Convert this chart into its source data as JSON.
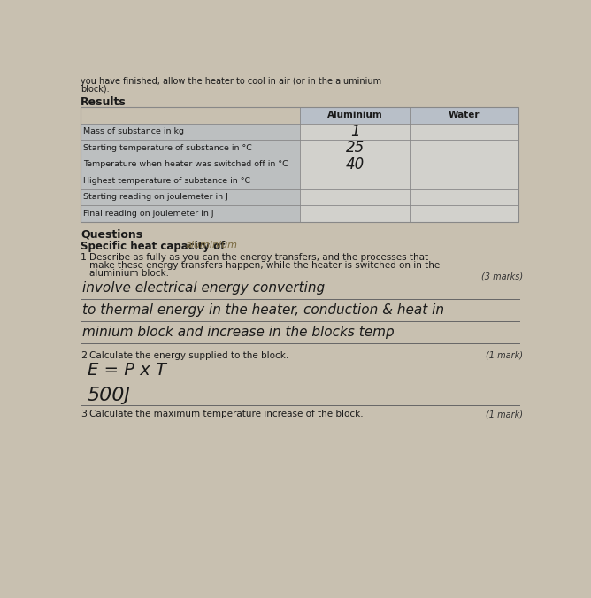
{
  "page_bg": "#c8c0b0",
  "table_label_bg": "#b8bfc8",
  "table_data_bg": "#dde2e8",
  "table_border": "#888888",
  "printed_color": "#1a1a1a",
  "hw_color": "#1a1a1a",
  "marks_color": "#333333",
  "top_text_line1": "you have finished, allow the heater to cool in air (or in the aluminium",
  "top_text_line2": "block).",
  "results_label": "Results",
  "questions_label": "Questions",
  "table_rows": [
    "Mass of substance in kg",
    "Starting temperature of substance in °C",
    "Temperature when heater was switched off in °C",
    "Highest temperature of substance in °C",
    "Starting reading on joulemeter in J",
    "Final reading on joulemeter in J"
  ],
  "al_header": "Aluminium",
  "water_header": "Water",
  "al_values": [
    "1",
    "25",
    "40",
    "",
    "",
    ""
  ],
  "water_values": [
    "",
    "",
    "",
    "",
    "",
    ""
  ],
  "shc_text_normal": "Specific heat capacity of ",
  "shc_text_hw": "aluminium",
  "q1_num": "1",
  "q1_text_line1": "Describe as fully as you can the energy transfers, and the processes that",
  "q1_text_line2": "make these energy transfers happen, while the heater is switched on in the",
  "q1_text_line3": "aluminium block.",
  "q1_marks": "(3 marks)",
  "q1_hw": [
    "involve electrical energy converting",
    "to thermal energy in the heater, conduction & heat in",
    "minium block and increase in the blocks temp"
  ],
  "q2_num": "2",
  "q2_text": "Calculate the energy supplied to the block.",
  "q2_marks": "(1 mark)",
  "q2_hw1": "E = P x T",
  "q2_hw2": "500J",
  "q3_num": "3",
  "q3_text": "Calculate the maximum temperature increase of the block.",
  "q3_marks": "(1 mark)",
  "line_color": "#666666"
}
